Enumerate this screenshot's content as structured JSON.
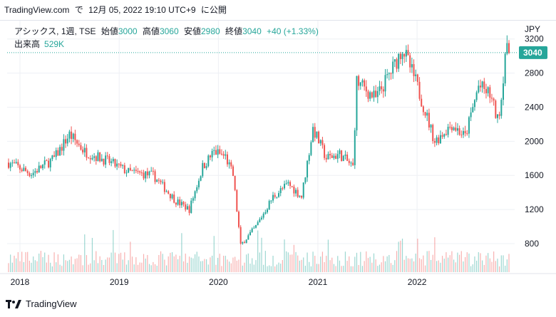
{
  "header": {
    "site": "TradingView.com",
    "connector": "で",
    "timestamp": "12月 05, 2022 19:10 UTC+9",
    "suffix": "に公開"
  },
  "legend": {
    "symbol": "アシックス, 1週, TSE",
    "open_label": "始値",
    "open": "3000",
    "high_label": "高値",
    "high": "3060",
    "low_label": "安値",
    "low": "2980",
    "close_label": "終値",
    "close": "3040",
    "change": "+40 (+1.33%)",
    "volume_label": "出来高",
    "volume": "529K"
  },
  "footer": {
    "brand": "TradingView"
  },
  "colors": {
    "up": "#26a69a",
    "down": "#ef5350",
    "accent": "#26a69a",
    "grid": "#eef0f4"
  },
  "chart_data": {
    "type": "candlestick",
    "currency": "JPY",
    "y_ticks": [
      800,
      1200,
      1600,
      2000,
      2400,
      2800,
      3200
    ],
    "ylim": [
      600,
      3250
    ],
    "x_ticks": [
      "2018",
      "2019",
      "2020",
      "2021",
      "2022"
    ],
    "last_price": 3040,
    "last_price_label": "3040",
    "weekly_close_anchors": [
      {
        "date": "2017-11-20",
        "close": 1750
      },
      {
        "date": "2018-02-12",
        "close": 1620
      },
      {
        "date": "2018-05-07",
        "close": 1800
      },
      {
        "date": "2018-07-02",
        "close": 2080
      },
      {
        "date": "2018-08-27",
        "close": 1880
      },
      {
        "date": "2018-11-12",
        "close": 1780
      },
      {
        "date": "2019-02-04",
        "close": 1640
      },
      {
        "date": "2019-05-06",
        "close": 1600
      },
      {
        "date": "2019-07-29",
        "close": 1300
      },
      {
        "date": "2019-09-16",
        "close": 1200
      },
      {
        "date": "2019-11-04",
        "close": 1700
      },
      {
        "date": "2019-12-16",
        "close": 1880
      },
      {
        "date": "2020-01-27",
        "close": 1820
      },
      {
        "date": "2020-02-24",
        "close": 1600
      },
      {
        "date": "2020-03-23",
        "close": 780
      },
      {
        "date": "2020-05-18",
        "close": 1000
      },
      {
        "date": "2020-07-20",
        "close": 1350
      },
      {
        "date": "2020-09-14",
        "close": 1500
      },
      {
        "date": "2020-11-02",
        "close": 1350
      },
      {
        "date": "2020-12-14",
        "close": 2150
      },
      {
        "date": "2021-02-01",
        "close": 1800
      },
      {
        "date": "2021-03-22",
        "close": 1850
      },
      {
        "date": "2021-05-10",
        "close": 1700
      },
      {
        "date": "2021-05-24",
        "close": 2700
      },
      {
        "date": "2021-08-02",
        "close": 2500
      },
      {
        "date": "2021-10-11",
        "close": 2900
      },
      {
        "date": "2021-11-08",
        "close": 3100
      },
      {
        "date": "2021-12-27",
        "close": 2700
      },
      {
        "date": "2022-03-07",
        "close": 2000
      },
      {
        "date": "2022-05-09",
        "close": 2200
      },
      {
        "date": "2022-06-27",
        "close": 2050
      },
      {
        "date": "2022-08-15",
        "close": 2650
      },
      {
        "date": "2022-09-26",
        "close": 2550
      },
      {
        "date": "2022-10-24",
        "close": 2250
      },
      {
        "date": "2022-11-07",
        "close": 2500
      },
      {
        "date": "2022-11-21",
        "close": 3050
      },
      {
        "date": "2022-12-05",
        "close": 3040
      }
    ]
  }
}
